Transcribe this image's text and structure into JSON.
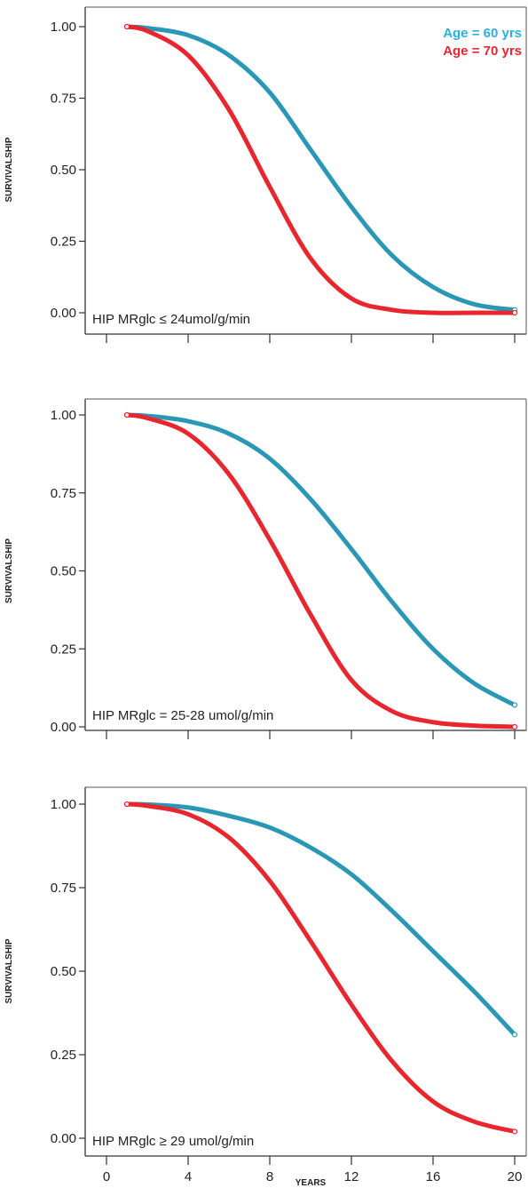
{
  "legend": [
    {
      "label": "Age = 60 yrs",
      "color": "#2bb0e0"
    },
    {
      "label": "Age = 70 yrs",
      "color": "#e8262e"
    }
  ],
  "chart_data": [
    {
      "type": "line",
      "panel_label": "HIP MRglc ≤ 24umol/g/min",
      "ylabel": "SURVIVALSHIP",
      "ylim": [
        0,
        1
      ],
      "yticks": [
        "0.00",
        "0.25",
        "0.50",
        "0.75",
        "1.00"
      ],
      "xlim": [
        -2,
        21
      ],
      "xticks": [
        0,
        4,
        8,
        12,
        16,
        20
      ],
      "xtick_labels_shown": false,
      "series": [
        {
          "name": "Age = 60 yrs",
          "color": "#2a98b5",
          "x": [
            1,
            2,
            4,
            6,
            8,
            10,
            12,
            14,
            16,
            18,
            20
          ],
          "y": [
            1.0,
            0.995,
            0.97,
            0.9,
            0.77,
            0.57,
            0.37,
            0.2,
            0.09,
            0.03,
            0.01
          ]
        },
        {
          "name": "Age = 70 yrs",
          "color": "#e8262e",
          "x": [
            1,
            2,
            4,
            6,
            8,
            10,
            12,
            14,
            16,
            18,
            20
          ],
          "y": [
            1.0,
            0.985,
            0.9,
            0.71,
            0.44,
            0.19,
            0.05,
            0.01,
            0.0,
            0.0,
            0.0
          ]
        }
      ]
    },
    {
      "type": "line",
      "panel_label": "HIP MRglc = 25-28 umol/g/min",
      "ylabel": "SURVIVALSHIP",
      "ylim": [
        0,
        1
      ],
      "yticks": [
        "0.00",
        "0.25",
        "0.50",
        "0.75",
        "1.00"
      ],
      "xlim": [
        -2,
        21
      ],
      "xticks": [
        0,
        4,
        8,
        12,
        16,
        20
      ],
      "xtick_labels_shown": false,
      "series": [
        {
          "name": "Age = 60 yrs",
          "color": "#2a98b5",
          "x": [
            1,
            2,
            4,
            6,
            8,
            10,
            12,
            14,
            16,
            18,
            20
          ],
          "y": [
            1.0,
            0.997,
            0.98,
            0.94,
            0.86,
            0.73,
            0.57,
            0.4,
            0.25,
            0.14,
            0.07
          ]
        },
        {
          "name": "Age = 70 yrs",
          "color": "#e8262e",
          "x": [
            1,
            2,
            4,
            6,
            8,
            10,
            12,
            14,
            16,
            18,
            20
          ],
          "y": [
            1.0,
            0.99,
            0.94,
            0.81,
            0.6,
            0.36,
            0.15,
            0.05,
            0.015,
            0.004,
            0.0
          ]
        }
      ]
    },
    {
      "type": "line",
      "panel_label": "HIP MRglc ≥ 29 umol/g/min",
      "ylabel": "SURVIVALSHIP",
      "xlabel": "YEARS",
      "ylim": [
        0,
        1
      ],
      "yticks": [
        "0.00",
        "0.25",
        "0.50",
        "0.75",
        "1.00"
      ],
      "xlim": [
        -2,
        21
      ],
      "xticks": [
        0,
        4,
        8,
        12,
        16,
        20
      ],
      "xtick_labels_shown": true,
      "series": [
        {
          "name": "Age = 60 yrs",
          "color": "#2a98b5",
          "x": [
            1,
            2,
            4,
            6,
            8,
            10,
            12,
            14,
            16,
            18,
            20
          ],
          "y": [
            1.0,
            0.999,
            0.99,
            0.965,
            0.93,
            0.87,
            0.79,
            0.68,
            0.56,
            0.44,
            0.31
          ]
        },
        {
          "name": "Age = 70 yrs",
          "color": "#e8262e",
          "x": [
            1,
            2,
            4,
            6,
            8,
            10,
            12,
            14,
            16,
            18,
            20
          ],
          "y": [
            1.0,
            0.995,
            0.97,
            0.9,
            0.77,
            0.59,
            0.4,
            0.23,
            0.11,
            0.05,
            0.02
          ]
        }
      ]
    }
  ]
}
